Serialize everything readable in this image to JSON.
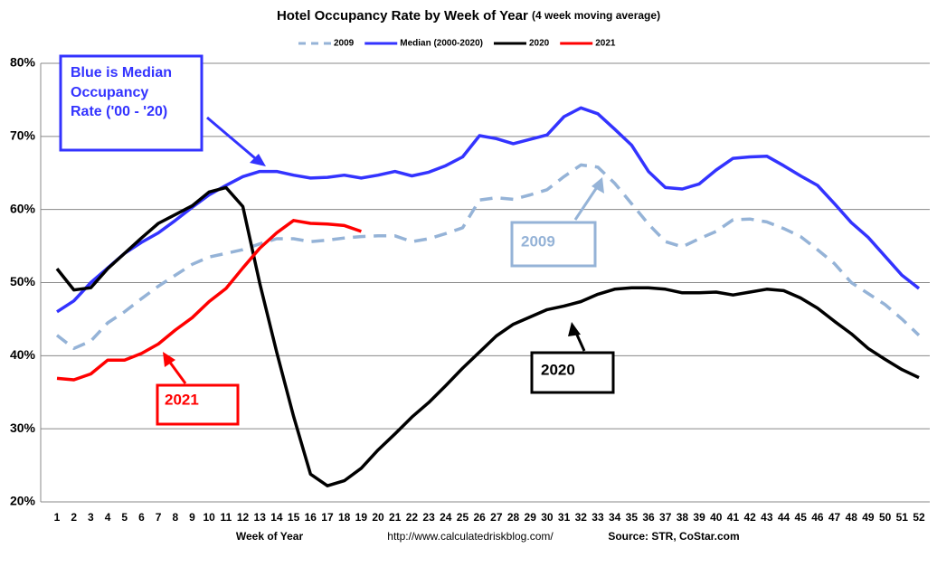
{
  "chart_data": {
    "type": "line",
    "title": "Hotel Occupancy Rate by  Week of Year",
    "subtitle": "(4 week moving average)",
    "x_label": "Week of Year",
    "url": "http://www.calculatedriskblog.com/",
    "source": "Source: STR, CoStar.com",
    "categories": [
      "1",
      "2",
      "3",
      "4",
      "5",
      "6",
      "7",
      "8",
      "9",
      "10",
      "11",
      "12",
      "13",
      "14",
      "15",
      "16",
      "17",
      "18",
      "19",
      "20",
      "21",
      "22",
      "23",
      "24",
      "25",
      "26",
      "27",
      "28",
      "29",
      "30",
      "31",
      "32",
      "33",
      "34",
      "35",
      "36",
      "37",
      "38",
      "39",
      "40",
      "41",
      "42",
      "43",
      "44",
      "45",
      "46",
      "47",
      "48",
      "49",
      "50",
      "51",
      "52"
    ],
    "ylim": [
      20,
      80
    ],
    "yticks": [
      {
        "value": 20,
        "label": "20%"
      },
      {
        "value": 30,
        "label": "30%"
      },
      {
        "value": 40,
        "label": "40%"
      },
      {
        "value": 50,
        "label": "50%"
      },
      {
        "value": 60,
        "label": "60%"
      },
      {
        "value": 70,
        "label": "70%"
      },
      {
        "value": 80,
        "label": "80%"
      }
    ],
    "grid": true,
    "legend": "top",
    "series": [
      {
        "name": "2009",
        "color": "#95b3d7",
        "dashed": true,
        "values": [
          42.8,
          41,
          42,
          44.5,
          46,
          47.8,
          49.5,
          51,
          52.5,
          53.5,
          54,
          54.5,
          55.3,
          56,
          56,
          55.6,
          55.8,
          56.1,
          56.3,
          56.4,
          56.4,
          55.6,
          56,
          56.7,
          57.5,
          61.3,
          61.6,
          61.4,
          62,
          62.7,
          64.5,
          66.1,
          65.8,
          63.6,
          60.8,
          58,
          55.6,
          54.9,
          56,
          57,
          58.6,
          58.7,
          58.3,
          57.4,
          56.3,
          54.5,
          52.6,
          50,
          48.5,
          47,
          45,
          42.8
        ]
      },
      {
        "name": "Median (2000-2020)",
        "color": "#3333ff",
        "dashed": false,
        "values": [
          46,
          47.5,
          50,
          52,
          54,
          55.5,
          56.8,
          58.5,
          60.3,
          62,
          63.3,
          64.5,
          65.2,
          65.2,
          64.7,
          64.3,
          64.4,
          64.7,
          64.3,
          64.7,
          65.2,
          64.6,
          65.1,
          66,
          67.2,
          70.1,
          69.7,
          69,
          69.6,
          70.2,
          72.7,
          73.9,
          73.1,
          71,
          68.8,
          65.2,
          63,
          62.8,
          63.5,
          65.4,
          67,
          67.2,
          67.3,
          66,
          64.6,
          63.3,
          60.8,
          58.2,
          56.2,
          53.6,
          51,
          49.2
        ]
      },
      {
        "name": "2020",
        "color": "#000000",
        "dashed": false,
        "values": [
          51.9,
          49,
          49.3,
          51.9,
          54,
          56.1,
          58.1,
          59.3,
          60.5,
          62.4,
          63,
          60.4,
          49.9,
          40.5,
          31.7,
          23.8,
          22.2,
          22.9,
          24.6,
          27.1,
          29.3,
          31.6,
          33.6,
          35.9,
          38.3,
          40.5,
          42.7,
          44.3,
          45.3,
          46.3,
          46.8,
          47.4,
          48.4,
          49.1,
          49.3,
          49.3,
          49.1,
          48.6,
          48.6,
          48.7,
          48.3,
          48.7,
          49.1,
          48.9,
          47.9,
          46.5,
          44.7,
          43,
          41,
          39.5,
          38.1,
          37
        ]
      },
      {
        "name": "2021",
        "color": "#ff0000",
        "dashed": false,
        "values": [
          36.9,
          36.7,
          37.5,
          39.4,
          39.4,
          40.3,
          41.6,
          43.5,
          45.2,
          47.4,
          49.2,
          52,
          54.7,
          56.8,
          58.5,
          58.1,
          58,
          57.8,
          57,
          null,
          null,
          null,
          null,
          null,
          null,
          null,
          null,
          null,
          null,
          null,
          null,
          null,
          null,
          null,
          null,
          null,
          null,
          null,
          null,
          null,
          null,
          null,
          null,
          null,
          null,
          null,
          null,
          null,
          null,
          null,
          null,
          null
        ]
      }
    ],
    "annotations": {
      "median": [
        "Blue is Median",
        "Occupancy",
        "Rate ('00 - '20)"
      ],
      "y2009": "2009",
      "y2020": "2020",
      "y2021": "2021"
    }
  }
}
